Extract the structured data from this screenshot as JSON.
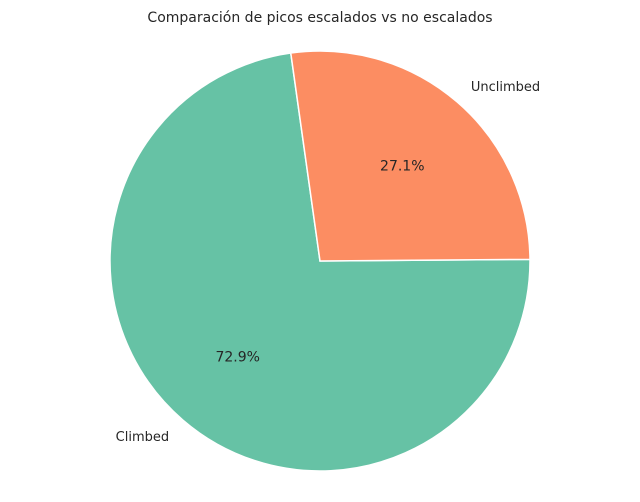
{
  "chart_data": {
    "type": "pie",
    "title": "Comparación de picos escalados vs no escalados",
    "categories": [
      "Climbed",
      "Unclimbed"
    ],
    "values": [
      72.9,
      27.1
    ],
    "value_labels": [
      "72.9%",
      "27.1%"
    ],
    "colors": [
      "#66c2a5",
      "#fc8d62"
    ],
    "legend": "none"
  }
}
